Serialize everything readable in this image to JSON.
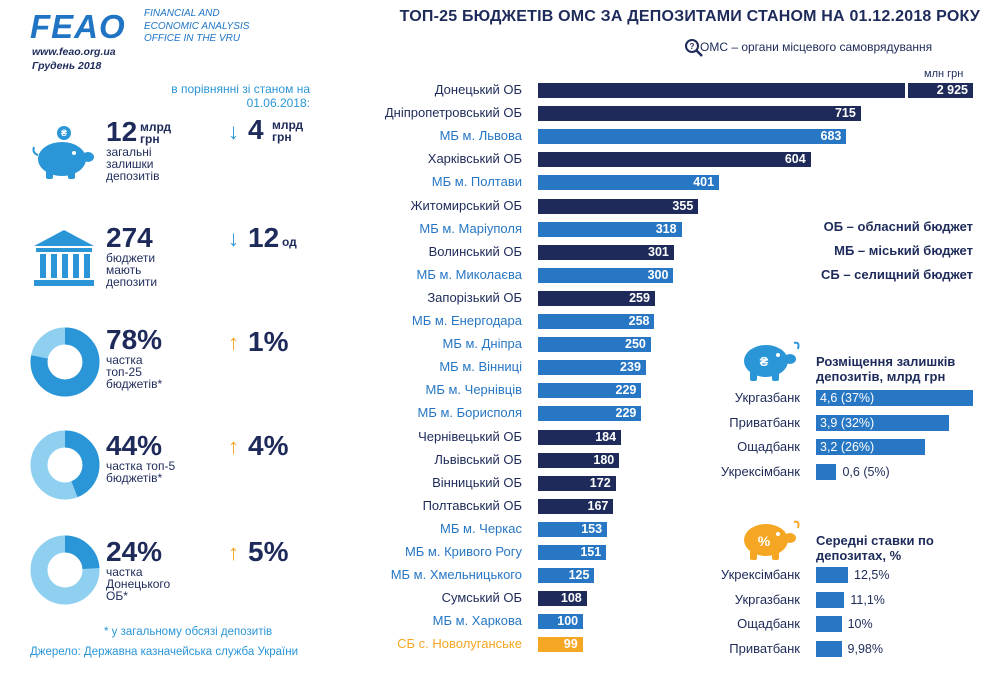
{
  "header": {
    "logo_text": "FEAO",
    "logo_subtitle": "FINANCIAL AND ECONOMIC ANALYSIS OFFICE IN THE VRU",
    "website": "www.feao.org.ua",
    "date": "Грудень 2018",
    "title": "ТОП-25 БЮДЖЕТІВ ОМС ЗА ДЕПОЗИТАМИ СТАНОМ НА 01.12.2018 РОКУ",
    "oms_note": "ОМС – органи місцевого самоврядування",
    "unit": "млн грн"
  },
  "stats": {
    "compare_note": "в порівнянні зі станом на 01.06.2018:",
    "items": [
      {
        "value": "12",
        "unit": "млрд грн",
        "desc": "загальні залишки депозитів",
        "delta_value": "4",
        "delta_unit": "млрд грн",
        "direction": "down"
      },
      {
        "value": "274",
        "unit": "",
        "desc": "бюджети мають депозити",
        "delta_value": "12",
        "delta_unit": "од",
        "direction": "down"
      },
      {
        "value": "78%",
        "unit": "",
        "desc": "частка топ-25 бюджетів*",
        "delta_value": "1%",
        "delta_unit": "",
        "direction": "up",
        "share": 0.78
      },
      {
        "value": "44%",
        "unit": "",
        "desc": "частка топ-5 бюджетів*",
        "delta_value": "4%",
        "delta_unit": "",
        "direction": "up",
        "share": 0.44
      },
      {
        "value": "24%",
        "unit": "",
        "desc": "частка Донецького ОБ*",
        "delta_value": "5%",
        "delta_unit": "",
        "direction": "up",
        "share": 0.24
      }
    ],
    "footnote": "* у загальному обсязі депозитів",
    "source": "Джерело: Державна казначейська служба України"
  },
  "legend": {
    "ob": "ОБ – обласний бюджет",
    "mb": "МБ – міський бюджет",
    "sb": "СБ – селищний бюджет"
  },
  "colors": {
    "ob": "#1e2b5a",
    "mb": "#2777c4",
    "sb": "#f5a623",
    "light_blue": "#2a96d8",
    "pie_light": "#8fd0f0"
  },
  "chart_data": [
    {
      "type": "bar",
      "orientation": "horizontal",
      "title": "ТОП-25 БЮДЖЕТІВ ОМС ЗА ДЕПОЗИТАМИ СТАНОМ НА 01.12.2018 РОКУ",
      "unit": "млн грн",
      "axis_break": true,
      "categories": [
        "Донецький ОБ",
        "Дніпропетровський ОБ",
        "МБ м. Львова",
        "Харківський ОБ",
        "МБ м. Полтави",
        "Житомирський ОБ",
        "МБ м. Маріуполя",
        "Волинський ОБ",
        "МБ м. Миколаєва",
        "Запорізький ОБ",
        "МБ м. Енергодара",
        "МБ м. Дніпра",
        "МБ м. Вінниці",
        "МБ м. Чернівців",
        "МБ м. Борисполя",
        "Чернівецький ОБ",
        "Львівський ОБ",
        "Вінницький ОБ",
        "Полтавський ОБ",
        "МБ м. Черкас",
        "МБ м. Кривого Рогу",
        "МБ м. Хмельницького",
        "Сумський ОБ",
        "МБ м. Харкова",
        "СБ с. Новолуганське"
      ],
      "values": [
        2925,
        715,
        683,
        604,
        401,
        355,
        318,
        301,
        300,
        259,
        258,
        250,
        239,
        229,
        229,
        184,
        180,
        172,
        167,
        153,
        151,
        125,
        108,
        100,
        99
      ],
      "value_labels": [
        "2 925",
        "715",
        "683",
        "604",
        "401",
        "355",
        "318",
        "301",
        "300",
        "259",
        "258",
        "250",
        "239",
        "229",
        "229",
        "184",
        "180",
        "172",
        "167",
        "153",
        "151",
        "125",
        "108",
        "100",
        "99"
      ],
      "budget_types": [
        "ob",
        "ob",
        "mb",
        "ob",
        "mb",
        "ob",
        "mb",
        "ob",
        "mb",
        "ob",
        "mb",
        "mb",
        "mb",
        "mb",
        "mb",
        "ob",
        "ob",
        "ob",
        "ob",
        "mb",
        "mb",
        "mb",
        "ob",
        "mb",
        "sb"
      ]
    },
    {
      "type": "bar",
      "orientation": "horizontal",
      "title": "Розміщення залишків депозитів, млрд грн",
      "categories": [
        "Укргазбанк",
        "Приватбанк",
        "Ощадбанк",
        "Укрексімбанк"
      ],
      "values": [
        4.6,
        3.9,
        3.2,
        0.6
      ],
      "value_labels": [
        "4,6 (37%)",
        "3,9 (32%)",
        "3,2 (26%)",
        "0,6 (5%)"
      ]
    },
    {
      "type": "bar",
      "orientation": "horizontal",
      "title": "Середні ставки по депозитах, %",
      "categories": [
        "Укрексімбанк",
        "Укргазбанк",
        "Ощадбанк",
        "Приватбанк"
      ],
      "values": [
        12.5,
        11.1,
        10,
        9.98
      ],
      "value_labels": [
        "12,5%",
        "11,1%",
        "10%",
        "9,98%"
      ]
    }
  ],
  "panels": {
    "placement_title": "Розміщення залишків депозитів, млрд грн",
    "rates_title": "Середні ставки по депозитах, %"
  }
}
